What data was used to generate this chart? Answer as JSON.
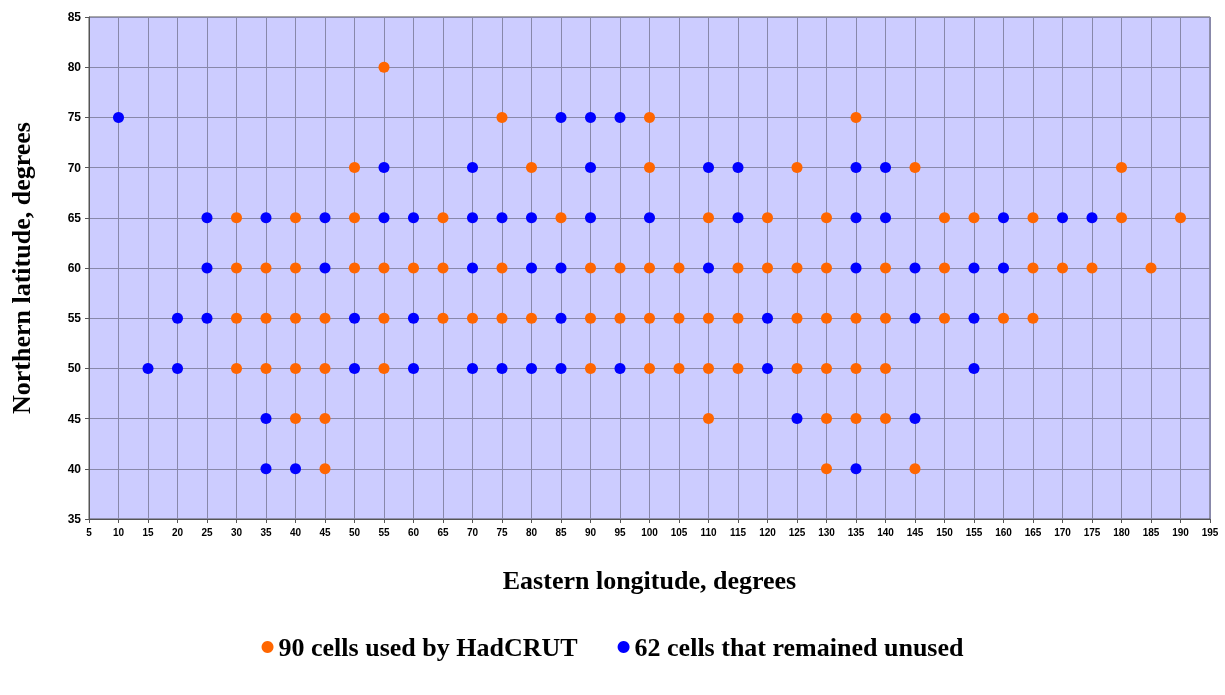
{
  "chart_data": {
    "type": "scatter",
    "xlabel": "Eastern longitude, degrees",
    "ylabel": "Northern latitude, degrees",
    "xlim": [
      5,
      195
    ],
    "xticks": [
      5,
      10,
      15,
      20,
      25,
      30,
      35,
      40,
      45,
      50,
      55,
      60,
      65,
      70,
      75,
      80,
      85,
      90,
      95,
      100,
      105,
      110,
      115,
      120,
      125,
      130,
      135,
      140,
      145,
      150,
      155,
      160,
      165,
      170,
      175,
      180,
      185,
      190,
      195
    ],
    "ylim": [
      35,
      85
    ],
    "yticks": [
      35,
      40,
      45,
      50,
      55,
      60,
      65,
      70,
      75,
      80,
      85
    ],
    "grid": true,
    "legend": "bottom",
    "marker": "circle",
    "series": [
      {
        "name": "90 cells used by HadCRUT",
        "color": "#ff6600",
        "x": [
          55,
          75,
          100,
          135,
          50,
          80,
          100,
          125,
          145,
          180,
          30,
          40,
          50,
          65,
          85,
          110,
          120,
          130,
          150,
          155,
          165,
          180,
          190,
          30,
          35,
          40,
          50,
          55,
          60,
          65,
          75,
          90,
          95,
          100,
          105,
          115,
          120,
          125,
          130,
          140,
          150,
          165,
          170,
          175,
          185,
          30,
          35,
          40,
          45,
          55,
          65,
          70,
          75,
          80,
          90,
          95,
          100,
          105,
          110,
          115,
          125,
          130,
          135,
          140,
          150,
          160,
          165,
          30,
          35,
          40,
          45,
          55,
          90,
          100,
          105,
          110,
          115,
          125,
          130,
          135,
          140,
          40,
          45,
          110,
          130,
          135,
          140,
          45,
          130,
          145
        ],
        "values": [
          80,
          75,
          75,
          75,
          70,
          70,
          70,
          70,
          70,
          70,
          65,
          65,
          65,
          65,
          65,
          65,
          65,
          65,
          65,
          65,
          65,
          65,
          65,
          60,
          60,
          60,
          60,
          60,
          60,
          60,
          60,
          60,
          60,
          60,
          60,
          60,
          60,
          60,
          60,
          60,
          60,
          60,
          60,
          60,
          60,
          55,
          55,
          55,
          55,
          55,
          55,
          55,
          55,
          55,
          55,
          55,
          55,
          55,
          55,
          55,
          55,
          55,
          55,
          55,
          55,
          55,
          55,
          50,
          50,
          50,
          50,
          50,
          50,
          50,
          50,
          50,
          50,
          50,
          50,
          50,
          50,
          45,
          45,
          45,
          45,
          45,
          45,
          40,
          40,
          40
        ]
      },
      {
        "name": "62 cells that remained unused",
        "color": "#0000ff",
        "x": [
          10,
          85,
          90,
          95,
          55,
          70,
          90,
          110,
          115,
          135,
          140,
          25,
          35,
          45,
          55,
          60,
          70,
          75,
          80,
          90,
          100,
          115,
          135,
          140,
          160,
          170,
          175,
          25,
          45,
          70,
          80,
          85,
          110,
          135,
          145,
          155,
          160,
          20,
          25,
          50,
          60,
          85,
          120,
          145,
          155,
          15,
          20,
          50,
          60,
          70,
          75,
          80,
          85,
          95,
          120,
          155,
          35,
          125,
          145,
          35,
          40,
          135
        ],
        "values": [
          75,
          75,
          75,
          75,
          70,
          70,
          70,
          70,
          70,
          70,
          70,
          65,
          65,
          65,
          65,
          65,
          65,
          65,
          65,
          65,
          65,
          65,
          65,
          65,
          65,
          65,
          65,
          60,
          60,
          60,
          60,
          60,
          60,
          60,
          60,
          60,
          60,
          55,
          55,
          55,
          55,
          55,
          55,
          55,
          55,
          50,
          50,
          50,
          50,
          50,
          50,
          50,
          50,
          50,
          50,
          50,
          45,
          45,
          45,
          40,
          40,
          40
        ]
      }
    ]
  }
}
